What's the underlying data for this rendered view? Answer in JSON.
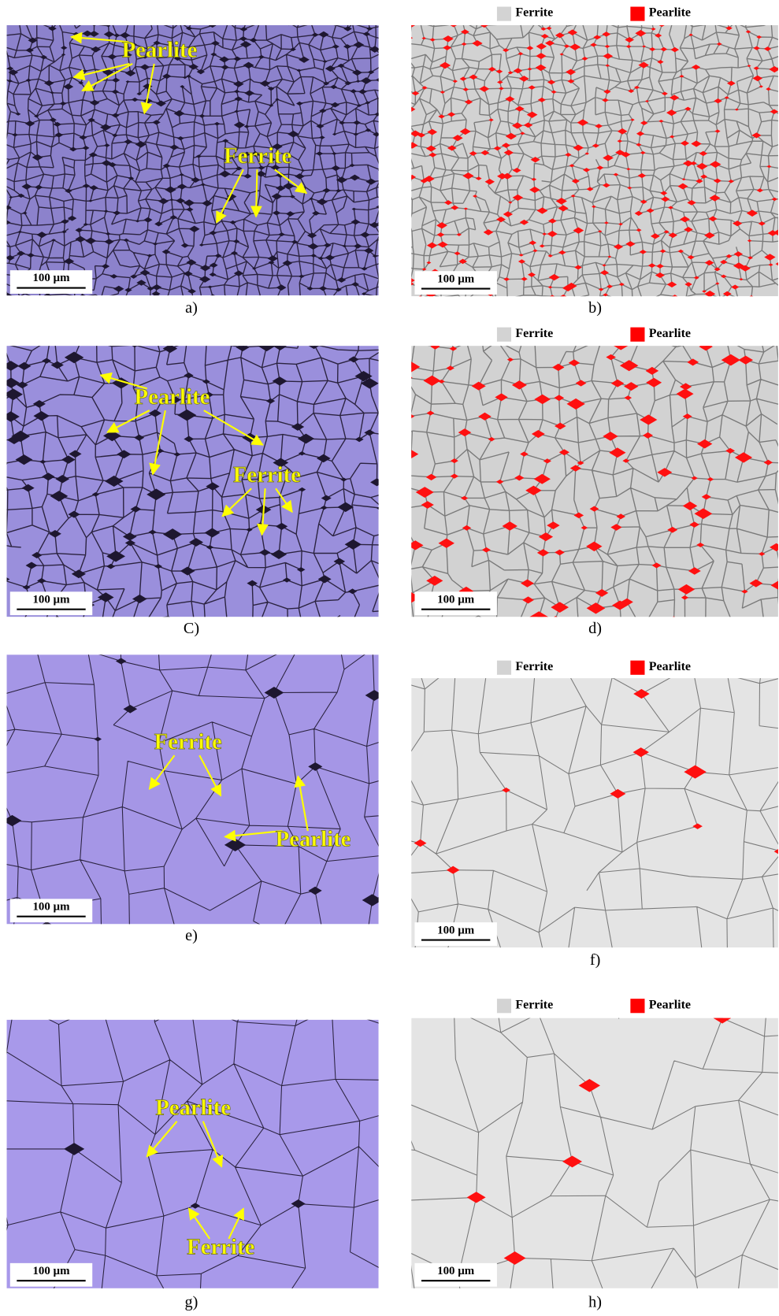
{
  "panels": [
    {
      "caption": "a)",
      "scale_bar": "100 µm",
      "annotations": [
        "Pearlite",
        "Ferrite"
      ]
    },
    {
      "caption": "b)",
      "scale_bar": "100 µm",
      "legend": [
        "Ferrite",
        "Pearlite"
      ]
    },
    {
      "caption": "C)",
      "scale_bar": "100 µm",
      "annotations": [
        "Pearlite",
        "Ferrite"
      ]
    },
    {
      "caption": "d)",
      "scale_bar": "100 µm",
      "legend": [
        "Ferrite",
        "Pearlite"
      ]
    },
    {
      "caption": "e)",
      "scale_bar": "100 µm",
      "annotations": [
        "Ferrite",
        "Pearlite"
      ]
    },
    {
      "caption": "f)",
      "scale_bar": "100 µm",
      "legend": [
        "Ferrite",
        "Pearlite"
      ]
    },
    {
      "caption": "g)",
      "scale_bar": "100 µm",
      "annotations": [
        "Pearlite",
        "Ferrite"
      ]
    },
    {
      "caption": "h)",
      "scale_bar": "100 µm",
      "legend": [
        "Ferrite",
        "Pearlite"
      ]
    }
  ]
}
